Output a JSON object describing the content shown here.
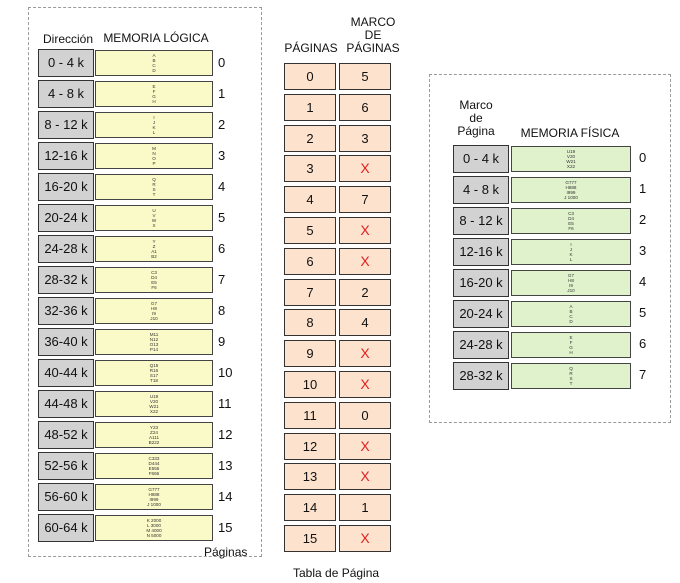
{
  "logical": {
    "header_address": "Dirección",
    "header_memory": "MEMORIA LÓGICA",
    "footer": "Páginas",
    "rows": [
      {
        "addr": "0 - 4 k",
        "content": [
          "A",
          "B",
          "C",
          "D"
        ],
        "page": "0"
      },
      {
        "addr": "4 - 8 k",
        "content": [
          "E",
          "F",
          "G",
          "H"
        ],
        "page": "1"
      },
      {
        "addr": "8 - 12 k",
        "content": [
          "I",
          "J",
          "K",
          "L"
        ],
        "page": "2"
      },
      {
        "addr": "12-16 k",
        "content": [
          "M",
          "N",
          "O",
          "P"
        ],
        "page": "3"
      },
      {
        "addr": "16-20 k",
        "content": [
          "Q",
          "R",
          "S",
          "T"
        ],
        "page": "4"
      },
      {
        "addr": "20-24 k",
        "content": [
          "U",
          "V",
          "W",
          "X"
        ],
        "page": "5"
      },
      {
        "addr": "24-28 k",
        "content": [
          "Y",
          "Z",
          "A1",
          "B2"
        ],
        "page": "6"
      },
      {
        "addr": "28-32 k",
        "content": [
          "C3",
          "D4",
          "E5",
          "F6"
        ],
        "page": "7"
      },
      {
        "addr": "32-36 k",
        "content": [
          "G7",
          "H8",
          "I9",
          "J10"
        ],
        "page": "8"
      },
      {
        "addr": "36-40 k",
        "content": [
          "M11",
          "N12",
          "O13",
          "P14"
        ],
        "page": "9"
      },
      {
        "addr": "40-44 k",
        "content": [
          "Q15",
          "R16",
          "S17",
          "T18"
        ],
        "page": "10"
      },
      {
        "addr": "44-48 k",
        "content": [
          "U19",
          "V20",
          "W21",
          "X22"
        ],
        "page": "11"
      },
      {
        "addr": "48-52 k",
        "content": [
          "Y23",
          "Z24",
          "A111",
          "B222"
        ],
        "page": "12"
      },
      {
        "addr": "52-56 k",
        "content": [
          "C333",
          "D444",
          "E555",
          "F666"
        ],
        "page": "13"
      },
      {
        "addr": "56-60 k",
        "content": [
          "G777",
          "H888",
          "I999",
          "J 1000"
        ],
        "page": "14"
      },
      {
        "addr": "60-64 k",
        "content": [
          "K 2000",
          "L 3000",
          "M 4000",
          "N 5000"
        ],
        "page": "15"
      }
    ]
  },
  "page_table": {
    "header_pages": "PÁGINAS",
    "header_frame": "MARCO\nDE\nPÁGINAS",
    "footer": "Tabla de Página",
    "rows": [
      {
        "page": "0",
        "frame": "5"
      },
      {
        "page": "1",
        "frame": "6"
      },
      {
        "page": "2",
        "frame": "3"
      },
      {
        "page": "3",
        "frame": "X"
      },
      {
        "page": "4",
        "frame": "7"
      },
      {
        "page": "5",
        "frame": "X"
      },
      {
        "page": "6",
        "frame": "X"
      },
      {
        "page": "7",
        "frame": "2"
      },
      {
        "page": "8",
        "frame": "4"
      },
      {
        "page": "9",
        "frame": "X"
      },
      {
        "page": "10",
        "frame": "X"
      },
      {
        "page": "11",
        "frame": "0"
      },
      {
        "page": "12",
        "frame": "X"
      },
      {
        "page": "13",
        "frame": "X"
      },
      {
        "page": "14",
        "frame": "1"
      },
      {
        "page": "15",
        "frame": "X"
      }
    ]
  },
  "physical": {
    "header_frame": "Marco\nde\nPágina",
    "header_memory": "MEMORIA FÍSICA",
    "rows": [
      {
        "addr": "0 - 4 k",
        "content": [
          "U19",
          "V20",
          "W21",
          "X22"
        ],
        "frame": "0"
      },
      {
        "addr": "4 - 8 k",
        "content": [
          "G777",
          "H888",
          "I999",
          "J 1000"
        ],
        "frame": "1"
      },
      {
        "addr": "8 - 12 k",
        "content": [
          "C3",
          "D4",
          "E5",
          "F6"
        ],
        "frame": "2"
      },
      {
        "addr": "12-16 k",
        "content": [
          "I",
          "J",
          "K",
          "L"
        ],
        "frame": "3"
      },
      {
        "addr": "16-20 k",
        "content": [
          "G7",
          "H8",
          "I9",
          "J10"
        ],
        "frame": "4"
      },
      {
        "addr": "20-24 k",
        "content": [
          "A",
          "B",
          "C",
          "D"
        ],
        "frame": "5"
      },
      {
        "addr": "24-28 k",
        "content": [
          "E",
          "F",
          "G",
          "H"
        ],
        "frame": "6"
      },
      {
        "addr": "28-32 k",
        "content": [
          "Q",
          "R",
          "S",
          "T"
        ],
        "frame": "7"
      }
    ]
  },
  "colors": {
    "address_cell": "#d2d2d2",
    "logical_memory_cell": "#fafac8",
    "physical_memory_cell": "#dff2cc",
    "page_table_cell": "#fde3cd",
    "invalid_marker": "#e02020"
  }
}
